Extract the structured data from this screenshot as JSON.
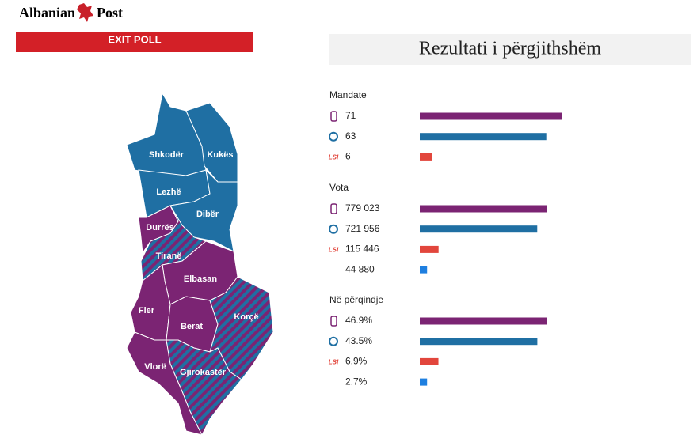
{
  "logo": [
    "Albanian",
    "Post"
  ],
  "banner": "EXIT POLL",
  "results_title": "Rezultati i përgjithshëm",
  "lsi_label": "LSI",
  "party_colors": [
    "#7b2473",
    "#1f6fa3",
    "#e2463c",
    "#1e7fe0"
  ],
  "map": {
    "regions": [
      {
        "name": "Shkodër",
        "fill": "blue"
      },
      {
        "name": "Kukës",
        "fill": "blue"
      },
      {
        "name": "Lezhë",
        "fill": "blue"
      },
      {
        "name": "Dibër",
        "fill": "blue"
      },
      {
        "name": "Durrës",
        "fill": "purple"
      },
      {
        "name": "Tiranë",
        "fill": "hatched"
      },
      {
        "name": "Elbasan",
        "fill": "purple"
      },
      {
        "name": "Fier",
        "fill": "purple"
      },
      {
        "name": "Berat",
        "fill": "purple"
      },
      {
        "name": "Korçë",
        "fill": "hatched"
      },
      {
        "name": "Vlorë",
        "fill": "purple"
      },
      {
        "name": "Gjirokastër",
        "fill": "hatched"
      }
    ]
  },
  "sections": [
    {
      "title": "Mandate",
      "values": [
        71,
        63,
        6
      ]
    },
    {
      "title": "Vota",
      "values": [
        779023,
        721956,
        115446,
        44880
      ],
      "value_labels": [
        "779 023",
        "721 956",
        "115 446",
        "44 880"
      ]
    },
    {
      "title": "Në përqindje",
      "values": [
        46.9,
        43.5,
        6.9,
        2.7
      ],
      "value_labels": [
        "46.9%",
        "43.5%",
        "6.9%",
        "2.7%"
      ]
    }
  ]
}
